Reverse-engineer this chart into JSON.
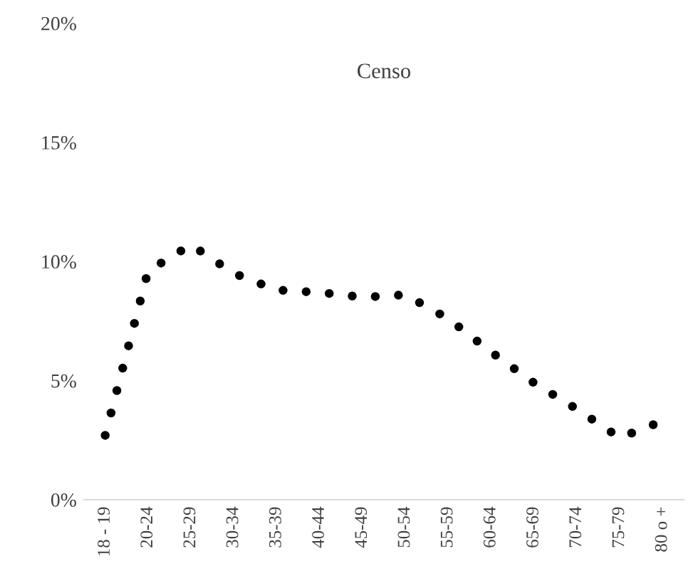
{
  "chart_data": {
    "type": "line",
    "title": "Censo",
    "categories": [
      "18 - 19",
      "20-24",
      "25-29",
      "30-34",
      "35-39",
      "40-44",
      "45-49",
      "50-54",
      "55-59",
      "60-64",
      "65-69",
      "70-74",
      "75-79",
      "80 o +"
    ],
    "series": [
      {
        "color": "#000000",
        "values": [
          2.7,
          9.6,
          10.7,
          9.5,
          8.8,
          8.7,
          8.5,
          8.6,
          7.6,
          6.2,
          4.9,
          3.8,
          2.6,
          3.3
        ]
      }
    ],
    "ylim": [
      0,
      20
    ],
    "yticks": [
      {
        "value": 0,
        "label": "0%"
      },
      {
        "value": 5,
        "label": "5%"
      },
      {
        "value": 10,
        "label": "10%"
      },
      {
        "value": 15,
        "label": "15%"
      },
      {
        "value": 20,
        "label": "20%"
      }
    ],
    "grid": false,
    "legend": false,
    "line_style": "dotted",
    "marker": "none"
  }
}
